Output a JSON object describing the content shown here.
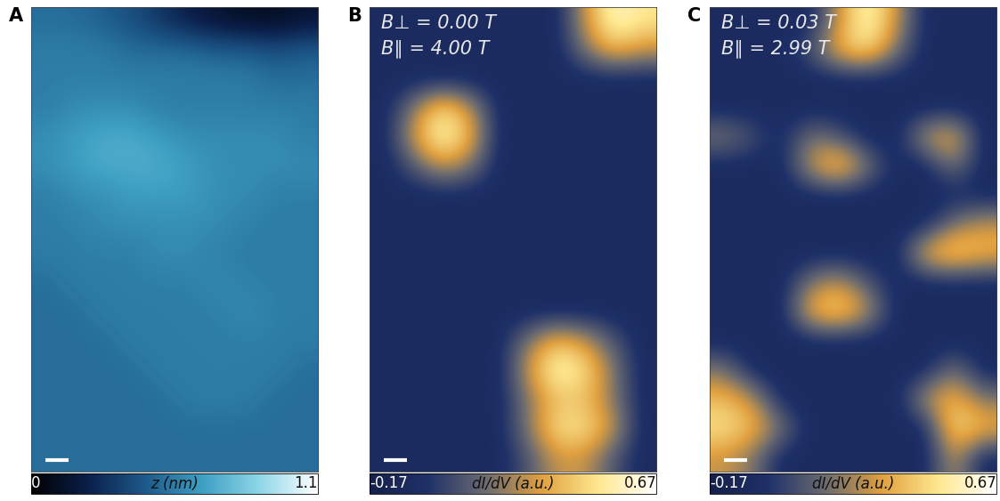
{
  "chart_data": [
    {
      "type": "heatmap",
      "title": "A",
      "annotations": [],
      "tick_labels": false,
      "colorbar": {
        "label": "z (nm)",
        "range": [
          0,
          1.1
        ],
        "ticks": [
          0,
          1.1
        ]
      },
      "cells": [
        [
          0.5,
          0.5,
          0.45,
          0.4,
          0.3,
          0.2,
          0.15,
          0.1,
          0.1,
          0.15
        ],
        [
          0.55,
          0.55,
          0.55,
          0.5,
          0.5,
          0.5,
          0.45,
          0.45,
          0.4,
          0.45
        ],
        [
          0.55,
          0.55,
          0.55,
          0.55,
          0.55,
          0.55,
          0.55,
          0.55,
          0.5,
          0.5
        ],
        [
          0.55,
          0.6,
          0.6,
          0.6,
          0.55,
          0.55,
          0.55,
          0.55,
          0.55,
          0.55
        ],
        [
          0.6,
          0.65,
          0.7,
          0.7,
          0.65,
          0.6,
          0.6,
          0.6,
          0.6,
          0.55
        ],
        [
          0.6,
          0.65,
          0.7,
          0.7,
          0.7,
          0.65,
          0.6,
          0.6,
          0.6,
          0.6
        ],
        [
          0.55,
          0.6,
          0.6,
          0.65,
          0.65,
          0.65,
          0.6,
          0.6,
          0.55,
          0.55
        ],
        [
          0.55,
          0.55,
          0.6,
          0.6,
          0.6,
          0.6,
          0.6,
          0.55,
          0.55,
          0.55
        ],
        [
          0.55,
          0.55,
          0.55,
          0.55,
          0.6,
          0.6,
          0.55,
          0.55,
          0.55,
          0.55
        ],
        [
          0.5,
          0.55,
          0.55,
          0.55,
          0.55,
          0.55,
          0.6,
          0.55,
          0.55,
          0.55
        ],
        [
          0.5,
          0.5,
          0.55,
          0.55,
          0.55,
          0.55,
          0.55,
          0.6,
          0.55,
          0.55
        ],
        [
          0.5,
          0.5,
          0.5,
          0.55,
          0.55,
          0.55,
          0.55,
          0.55,
          0.55,
          0.55
        ],
        [
          0.5,
          0.5,
          0.5,
          0.5,
          0.55,
          0.55,
          0.55,
          0.55,
          0.55,
          0.5
        ],
        [
          0.5,
          0.5,
          0.5,
          0.5,
          0.5,
          0.55,
          0.55,
          0.55,
          0.5,
          0.5
        ],
        [
          0.5,
          0.5,
          0.5,
          0.5,
          0.5,
          0.5,
          0.5,
          0.5,
          0.5,
          0.5
        ],
        [
          0.5,
          0.5,
          0.5,
          0.5,
          0.5,
          0.5,
          0.5,
          0.5,
          0.5,
          0.5
        ]
      ]
    },
    {
      "type": "heatmap",
      "title": "B",
      "annotations": [
        "B⊥ = 0.00 T",
        "B∥ = 4.00 T"
      ],
      "tick_labels": false,
      "colorbar": {
        "label": "dI/dV (a.u.)",
        "range": [
          -0.17,
          0.67
        ],
        "ticks": [
          -0.17,
          0.67
        ]
      },
      "cells": [
        [
          -0.05,
          -0.05,
          -0.05,
          -0.05,
          -0.05,
          -0.05,
          -0.05,
          0.3,
          0.6,
          0.5
        ],
        [
          -0.05,
          -0.05,
          -0.05,
          -0.05,
          -0.05,
          -0.05,
          -0.05,
          0.2,
          0.4,
          0.3
        ],
        [
          -0.05,
          -0.05,
          -0.05,
          -0.05,
          -0.05,
          -0.05,
          -0.05,
          -0.05,
          -0.05,
          -0.05
        ],
        [
          -0.05,
          0.2,
          0.5,
          0.3,
          -0.05,
          -0.05,
          -0.05,
          -0.05,
          -0.05,
          -0.05
        ],
        [
          -0.05,
          0.3,
          0.6,
          0.4,
          -0.05,
          -0.05,
          -0.05,
          -0.05,
          -0.05,
          -0.05
        ],
        [
          -0.05,
          0.1,
          0.3,
          0.2,
          -0.05,
          -0.05,
          -0.05,
          -0.05,
          -0.05,
          -0.05
        ],
        [
          -0.05,
          -0.05,
          -0.05,
          -0.05,
          -0.05,
          -0.05,
          -0.05,
          -0.05,
          -0.05,
          -0.05
        ],
        [
          -0.05,
          -0.05,
          -0.05,
          -0.05,
          -0.05,
          -0.05,
          -0.05,
          -0.05,
          -0.05,
          -0.05
        ],
        [
          -0.05,
          -0.05,
          -0.05,
          -0.05,
          -0.05,
          -0.05,
          -0.05,
          -0.05,
          -0.05,
          -0.05
        ],
        [
          -0.05,
          -0.05,
          -0.05,
          -0.05,
          -0.05,
          -0.05,
          -0.05,
          -0.05,
          -0.05,
          -0.05
        ],
        [
          -0.05,
          -0.05,
          -0.05,
          -0.05,
          -0.05,
          -0.05,
          -0.05,
          -0.05,
          -0.05,
          -0.05
        ],
        [
          -0.05,
          -0.05,
          -0.05,
          -0.05,
          -0.05,
          0.2,
          0.4,
          0.3,
          0.1,
          -0.05
        ],
        [
          -0.05,
          -0.05,
          -0.05,
          -0.05,
          -0.05,
          0.3,
          0.6,
          0.5,
          0.2,
          -0.05
        ],
        [
          -0.05,
          -0.05,
          -0.05,
          -0.05,
          -0.05,
          0.2,
          0.4,
          0.4,
          0.2,
          -0.05
        ],
        [
          -0.05,
          -0.05,
          -0.05,
          -0.05,
          -0.05,
          0.2,
          0.5,
          0.5,
          0.3,
          -0.05
        ],
        [
          -0.05,
          -0.05,
          -0.05,
          -0.05,
          -0.05,
          0.1,
          0.3,
          0.3,
          0.1,
          -0.05
        ]
      ]
    },
    {
      "type": "heatmap",
      "title": "C",
      "annotations": [
        "B⊥ = 0.03 T",
        "B∥ = 2.99 T"
      ],
      "tick_labels": false,
      "colorbar": {
        "label": "dI/dV (a.u.)",
        "range": [
          -0.17,
          0.67
        ],
        "ticks": [
          -0.17,
          0.67
        ]
      },
      "cells": [
        [
          -0.05,
          -0.05,
          -0.05,
          -0.05,
          0.3,
          0.6,
          0.3,
          -0.05,
          -0.05,
          -0.05
        ],
        [
          -0.05,
          -0.05,
          -0.05,
          0.1,
          0.4,
          0.5,
          0.2,
          -0.05,
          -0.05,
          -0.05
        ],
        [
          -0.05,
          -0.05,
          -0.05,
          -0.05,
          -0.05,
          -0.05,
          -0.05,
          -0.05,
          -0.05,
          -0.05
        ],
        [
          -0.05,
          -0.05,
          -0.05,
          -0.05,
          -0.05,
          -0.05,
          -0.05,
          -0.05,
          -0.05,
          -0.05
        ],
        [
          0.2,
          0.1,
          -0.05,
          0.2,
          0.1,
          -0.05,
          -0.05,
          0.3,
          0.4,
          -0.05
        ],
        [
          -0.05,
          -0.05,
          -0.05,
          0.3,
          0.5,
          0.2,
          -0.05,
          -0.05,
          0.2,
          -0.05
        ],
        [
          -0.05,
          -0.05,
          -0.05,
          -0.05,
          -0.05,
          -0.05,
          -0.05,
          -0.05,
          -0.05,
          -0.05
        ],
        [
          -0.05,
          -0.05,
          -0.05,
          -0.05,
          -0.05,
          -0.05,
          -0.05,
          -0.05,
          0.2,
          0.3
        ],
        [
          -0.05,
          -0.05,
          -0.05,
          -0.05,
          -0.05,
          -0.05,
          -0.05,
          0.4,
          0.5,
          0.4
        ],
        [
          -0.05,
          -0.05,
          -0.05,
          0.2,
          0.3,
          0.1,
          -0.05,
          -0.05,
          -0.05,
          -0.05
        ],
        [
          -0.05,
          -0.05,
          -0.05,
          0.4,
          0.5,
          0.3,
          -0.05,
          -0.05,
          -0.05,
          -0.05
        ],
        [
          -0.05,
          -0.05,
          -0.05,
          -0.05,
          -0.05,
          -0.05,
          -0.05,
          -0.05,
          -0.05,
          -0.05
        ],
        [
          0.2,
          -0.05,
          -0.05,
          -0.05,
          -0.05,
          -0.05,
          -0.05,
          -0.05,
          0.2,
          -0.05
        ],
        [
          0.4,
          0.3,
          -0.05,
          -0.05,
          -0.05,
          -0.05,
          -0.05,
          0.3,
          0.4,
          0.2
        ],
        [
          0.5,
          0.4,
          0.2,
          -0.05,
          -0.05,
          -0.05,
          -0.05,
          -0.05,
          0.5,
          0.4
        ],
        [
          0.3,
          0.2,
          -0.05,
          -0.05,
          -0.05,
          -0.05,
          -0.05,
          -0.05,
          0.3,
          -0.05
        ]
      ]
    }
  ]
}
